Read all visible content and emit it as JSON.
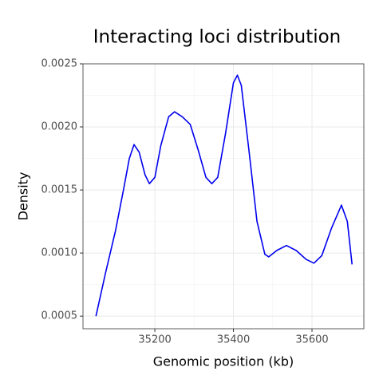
{
  "chart_data": {
    "type": "line",
    "title": "Interacting loci distribution",
    "x_label": "Genomic position (kb)",
    "y_label": "Density",
    "x": [
      35050,
      35075,
      35100,
      35120,
      35135,
      35147,
      35160,
      35175,
      35186,
      35200,
      35215,
      35235,
      35250,
      35270,
      35290,
      35310,
      35330,
      35345,
      35360,
      35380,
      35400,
      35410,
      35420,
      35440,
      35460,
      35480,
      35490,
      35510,
      35535,
      35560,
      35585,
      35605,
      35625,
      35650,
      35675,
      35690,
      35702
    ],
    "series": [
      {
        "name": "density",
        "color": "#0000ee",
        "values": [
          0.0005,
          0.00085,
          0.00118,
          0.0015,
          0.00175,
          0.00186,
          0.0018,
          0.00162,
          0.00155,
          0.0016,
          0.00185,
          0.00208,
          0.00212,
          0.00208,
          0.00202,
          0.00182,
          0.0016,
          0.00155,
          0.0016,
          0.00195,
          0.00235,
          0.00241,
          0.00233,
          0.0018,
          0.00125,
          0.00099,
          0.00097,
          0.00102,
          0.00106,
          0.00102,
          0.00095,
          0.00092,
          0.00098,
          0.0012,
          0.00138,
          0.00125,
          0.00091
        ]
      }
    ],
    "xlim": [
      35017,
      35732
    ],
    "xticks": [
      35200,
      35400,
      35600
    ],
    "ylim": [
      0.0004,
      0.0025
    ],
    "yticks": [
      {
        "value": 0.0005,
        "label": "0.0005"
      },
      {
        "value": 0.001,
        "label": "0.0010"
      },
      {
        "value": 0.0015,
        "label": "0.0015"
      },
      {
        "value": 0.002,
        "label": "0.0020"
      },
      {
        "value": 0.0025,
        "label": "0.0025"
      }
    ],
    "grid": true
  }
}
